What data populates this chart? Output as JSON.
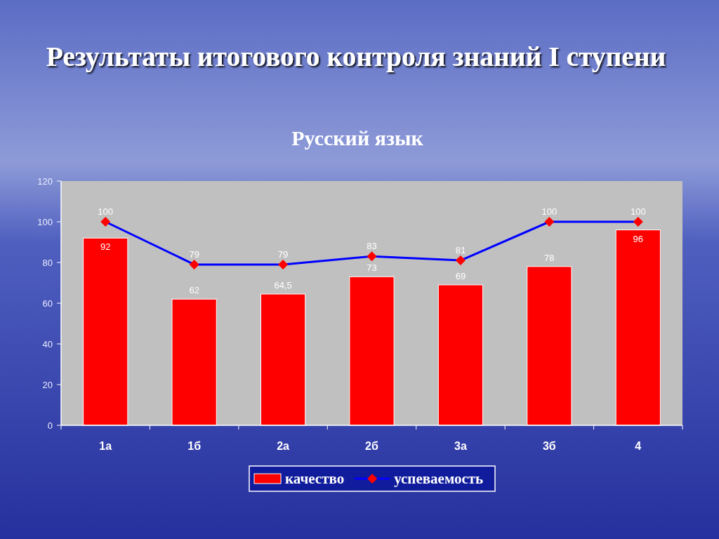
{
  "chart_data": {
    "type": "bar",
    "title": "Результаты итогового контроля знаний I ступени",
    "subtitle": "Русский язык",
    "categories": [
      "1а",
      "1б",
      "2а",
      "2б",
      "3а",
      "3б",
      "4"
    ],
    "series": [
      {
        "name": "качество",
        "color": "#ff0000",
        "values": [
          92,
          62,
          64.5,
          73,
          69,
          78,
          96
        ],
        "value_labels": [
          "92",
          "62",
          "64,5",
          "73",
          "69",
          "78",
          "96"
        ]
      },
      {
        "name": "успеваемость",
        "type": "line",
        "color": "#0000ff",
        "colors": [
          "#ff0000",
          "#ff0000",
          "#ff0000",
          "#ff0000",
          "#ff0000",
          "#ff0000",
          "#ff0000"
        ],
        "marker": "diamond",
        "values": [
          100,
          79,
          79,
          83,
          81,
          100,
          100
        ],
        "value_labels": [
          "100",
          "79",
          "79",
          "83",
          "81",
          "100",
          "100"
        ]
      }
    ],
    "ylim": [
      0,
      120
    ],
    "yticks": [
      0,
      20,
      40,
      60,
      80,
      100,
      120
    ],
    "legend": "bottom"
  }
}
